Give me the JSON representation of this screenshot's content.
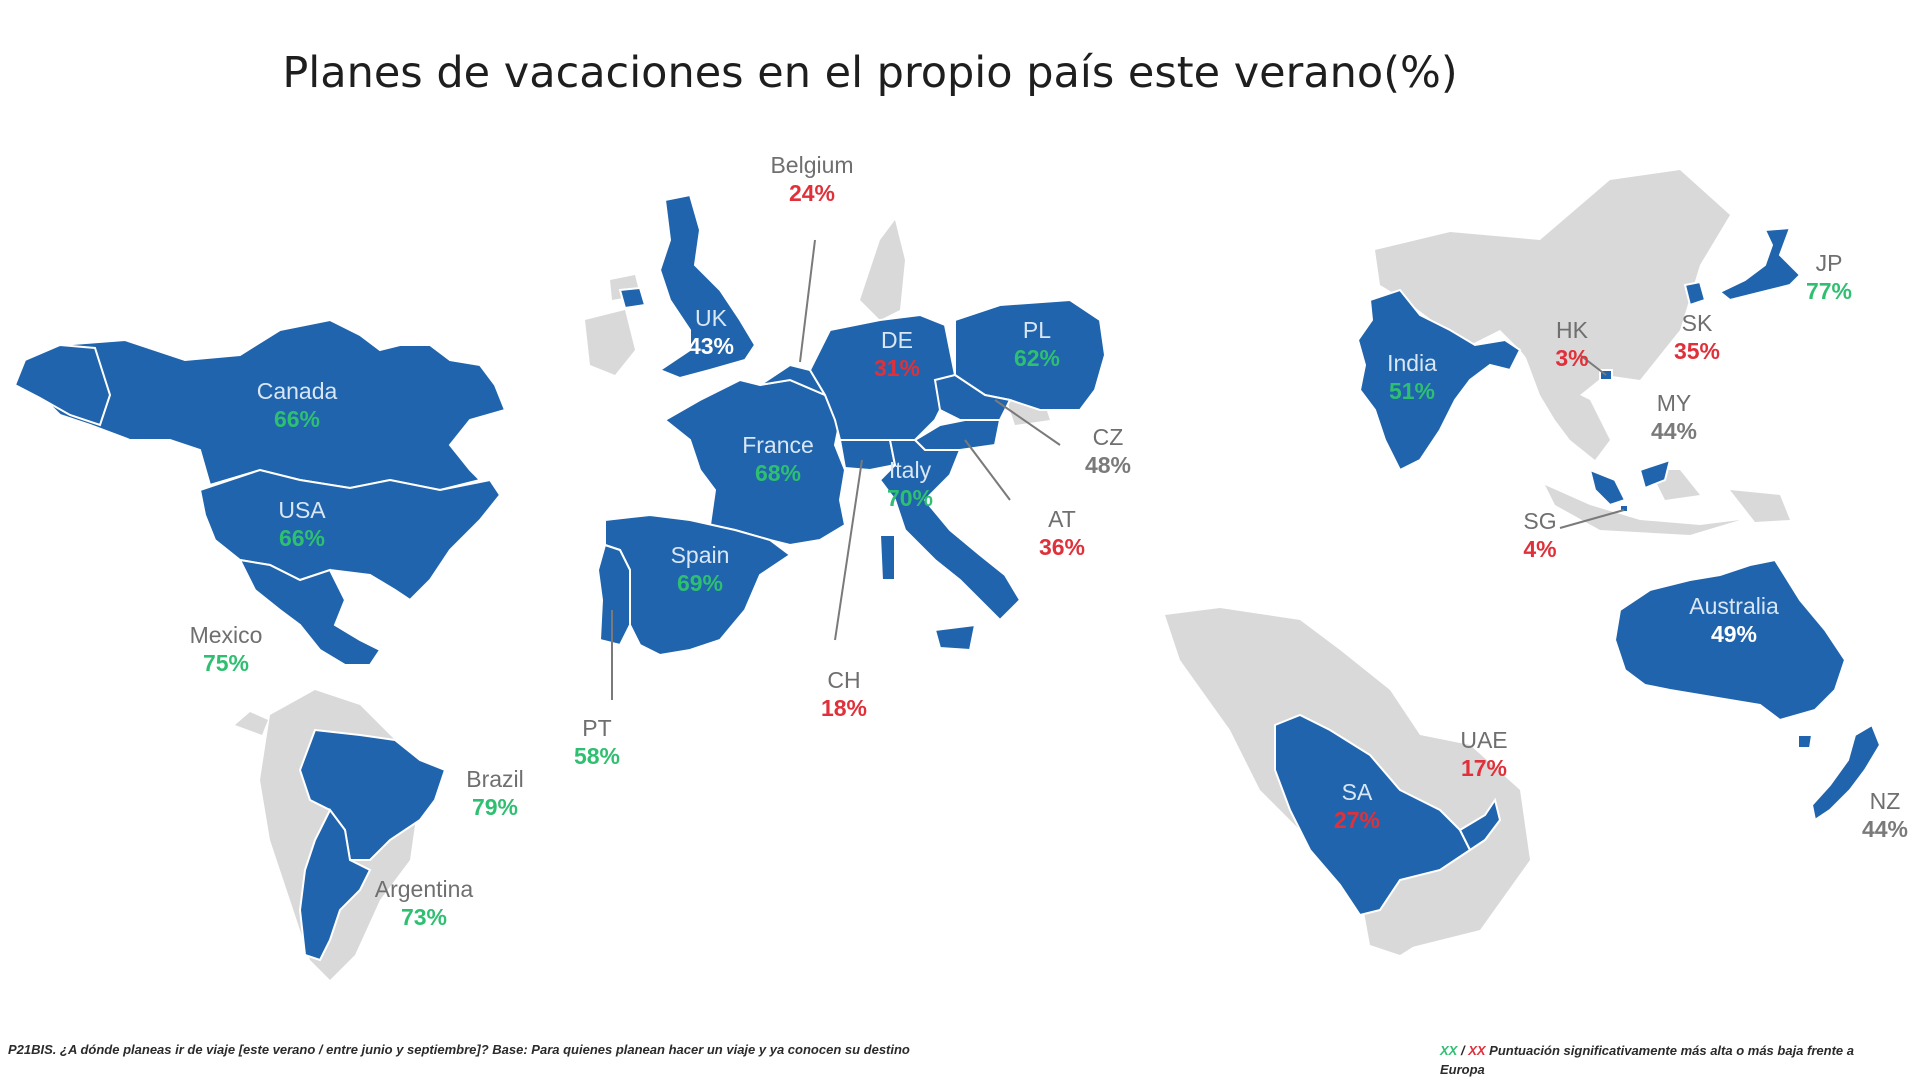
{
  "title": "Planes de vacaciones en el propio país este verano(%)",
  "colors": {
    "highlight": "#1f64ad",
    "background_land": "#d9d9d9",
    "significantly_higher": "#2fbf71",
    "significantly_lower": "#e0303a",
    "neutral": "#7a7a7a"
  },
  "countries": [
    {
      "name": "Canada",
      "value": "66%",
      "status": "green"
    },
    {
      "name": "USA",
      "value": "66%",
      "status": "green"
    },
    {
      "name": "Mexico",
      "value": "75%",
      "status": "green"
    },
    {
      "name": "Brazil",
      "value": "79%",
      "status": "green"
    },
    {
      "name": "Argentina",
      "value": "73%",
      "status": "green"
    },
    {
      "name": "UK",
      "value": "43%",
      "status": "grey"
    },
    {
      "name": "Belgium",
      "value": "24%",
      "status": "red"
    },
    {
      "name": "DE",
      "value": "31%",
      "status": "red"
    },
    {
      "name": "PL",
      "value": "62%",
      "status": "green"
    },
    {
      "name": "France",
      "value": "68%",
      "status": "green"
    },
    {
      "name": "Italy",
      "value": "70%",
      "status": "green"
    },
    {
      "name": "Spain",
      "value": "69%",
      "status": "green"
    },
    {
      "name": "CZ",
      "value": "48%",
      "status": "grey"
    },
    {
      "name": "AT",
      "value": "36%",
      "status": "red"
    },
    {
      "name": "CH",
      "value": "18%",
      "status": "red"
    },
    {
      "name": "PT",
      "value": "58%",
      "status": "green"
    },
    {
      "name": "India",
      "value": "51%",
      "status": "green"
    },
    {
      "name": "HK",
      "value": "3%",
      "status": "red"
    },
    {
      "name": "SK",
      "value": "35%",
      "status": "red"
    },
    {
      "name": "JP",
      "value": "77%",
      "status": "green"
    },
    {
      "name": "MY",
      "value": "44%",
      "status": "grey"
    },
    {
      "name": "SG",
      "value": "4%",
      "status": "red"
    },
    {
      "name": "Australia",
      "value": "49%",
      "status": "grey"
    },
    {
      "name": "NZ",
      "value": "44%",
      "status": "grey"
    },
    {
      "name": "SA",
      "value": "27%",
      "status": "red"
    },
    {
      "name": "UAE",
      "value": "17%",
      "status": "red"
    }
  ],
  "footnote": "P21BIS. ¿A dónde planeas ir de viaje [este verano / entre junio y septiembre]? Base: Para quienes planean hacer un viaje y ya conocen su destino",
  "legend": {
    "green_marker": "XX",
    "separator": " / ",
    "red_marker": "XX",
    "text": " Puntuación significativamente más alta o más baja frente a Europa"
  }
}
